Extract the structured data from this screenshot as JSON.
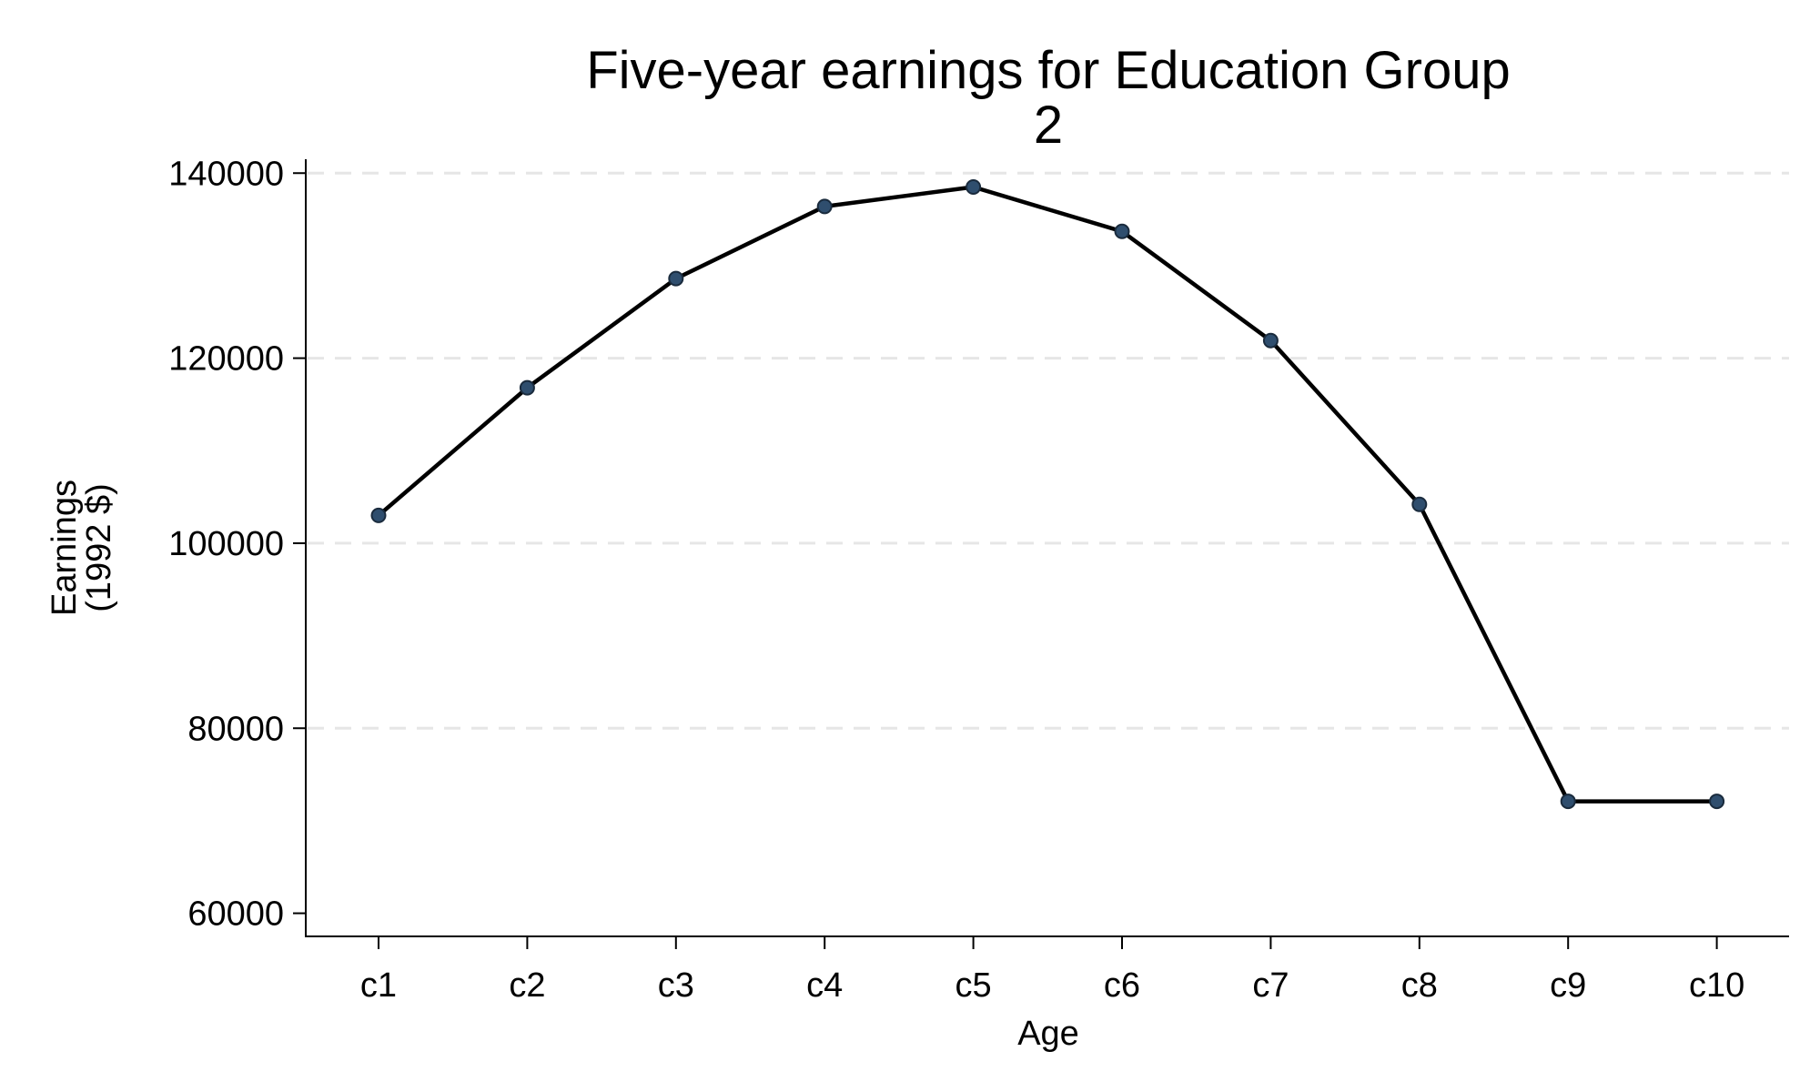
{
  "chart_data": {
    "type": "line",
    "title": [
      "Five-year earnings for Education Group",
      "2"
    ],
    "xlabel": "Age",
    "ylabel": [
      "Earnings",
      "(1992 $)"
    ],
    "categories": [
      "c1",
      "c2",
      "c3",
      "c4",
      "c5",
      "c6",
      "c7",
      "c8",
      "c9",
      "c10"
    ],
    "series": [
      {
        "values": [
          103000,
          116800,
          128600,
          136400,
          138500,
          133700,
          121900,
          104200,
          72100,
          72100
        ],
        "color": "#000000",
        "marker_color": "#2f4e6e"
      }
    ],
    "ylim": [
      57500,
      141500
    ],
    "yticks": [
      60000,
      80000,
      100000,
      120000,
      140000
    ],
    "ytick_labels": [
      "60000",
      "80000",
      "100000",
      "120000",
      "140000"
    ],
    "grid": true,
    "legend": "none"
  }
}
